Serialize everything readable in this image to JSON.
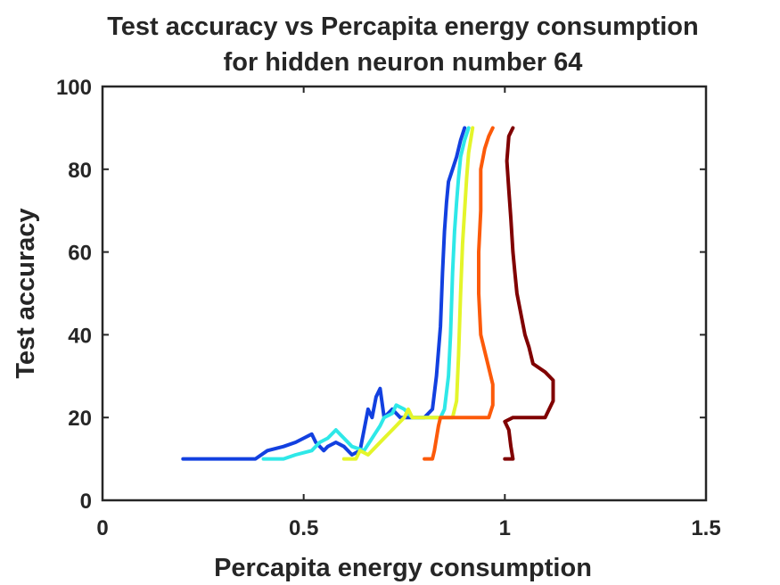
{
  "chart_data": {
    "type": "line",
    "title": [
      "Test accuracy vs Percapita energy consumption",
      "for hidden neuron number 64"
    ],
    "xlabel": "Percapita energy consumption",
    "ylabel": "Test accuracy",
    "xlim": [
      0,
      1.5
    ],
    "ylim": [
      0,
      100
    ],
    "xticks": [
      0,
      0.5,
      1,
      1.5
    ],
    "xtick_labels": [
      "0",
      "0.5",
      "1",
      "1.5"
    ],
    "yticks": [
      0,
      20,
      40,
      60,
      80,
      100
    ],
    "ytick_labels": [
      "0",
      "20",
      "40",
      "60",
      "80",
      "100"
    ],
    "grid": false,
    "box": true,
    "series": [
      {
        "color": "#1240e0",
        "points": [
          [
            0.2,
            10
          ],
          [
            0.38,
            10
          ],
          [
            0.41,
            12
          ],
          [
            0.45,
            13
          ],
          [
            0.48,
            14
          ],
          [
            0.5,
            15
          ],
          [
            0.52,
            16
          ],
          [
            0.53,
            14
          ],
          [
            0.55,
            12
          ],
          [
            0.56,
            13
          ],
          [
            0.58,
            14
          ],
          [
            0.6,
            13
          ],
          [
            0.62,
            11
          ],
          [
            0.64,
            12
          ],
          [
            0.65,
            17
          ],
          [
            0.66,
            22
          ],
          [
            0.67,
            20
          ],
          [
            0.68,
            25
          ],
          [
            0.69,
            27
          ],
          [
            0.7,
            20
          ],
          [
            0.72,
            22
          ],
          [
            0.74,
            20
          ],
          [
            0.8,
            20
          ],
          [
            0.82,
            22
          ],
          [
            0.83,
            30
          ],
          [
            0.84,
            42
          ],
          [
            0.845,
            55
          ],
          [
            0.85,
            65
          ],
          [
            0.855,
            72
          ],
          [
            0.86,
            77
          ],
          [
            0.87,
            80
          ],
          [
            0.88,
            83
          ],
          [
            0.89,
            87
          ],
          [
            0.9,
            90
          ]
        ]
      },
      {
        "color": "#2ee8e8",
        "points": [
          [
            0.4,
            10
          ],
          [
            0.45,
            10
          ],
          [
            0.48,
            11
          ],
          [
            0.52,
            12
          ],
          [
            0.54,
            14
          ],
          [
            0.56,
            15
          ],
          [
            0.58,
            17
          ],
          [
            0.6,
            15
          ],
          [
            0.62,
            13
          ],
          [
            0.65,
            12
          ],
          [
            0.67,
            15
          ],
          [
            0.69,
            18
          ],
          [
            0.7,
            20
          ],
          [
            0.72,
            21
          ],
          [
            0.73,
            23
          ],
          [
            0.75,
            22
          ],
          [
            0.77,
            20
          ],
          [
            0.84,
            20
          ],
          [
            0.85,
            22
          ],
          [
            0.86,
            30
          ],
          [
            0.865,
            40
          ],
          [
            0.87,
            55
          ],
          [
            0.875,
            65
          ],
          [
            0.88,
            72
          ],
          [
            0.885,
            78
          ],
          [
            0.89,
            83
          ],
          [
            0.9,
            87
          ],
          [
            0.91,
            90
          ]
        ]
      },
      {
        "color": "#e4f52a",
        "points": [
          [
            0.6,
            10
          ],
          [
            0.63,
            10
          ],
          [
            0.64,
            12
          ],
          [
            0.66,
            11
          ],
          [
            0.68,
            13
          ],
          [
            0.7,
            15
          ],
          [
            0.72,
            17
          ],
          [
            0.74,
            19
          ],
          [
            0.75,
            20
          ],
          [
            0.76,
            22
          ],
          [
            0.77,
            20
          ],
          [
            0.87,
            20
          ],
          [
            0.88,
            24
          ],
          [
            0.885,
            35
          ],
          [
            0.89,
            50
          ],
          [
            0.895,
            62
          ],
          [
            0.9,
            70
          ],
          [
            0.905,
            78
          ],
          [
            0.91,
            84
          ],
          [
            0.92,
            90
          ]
        ]
      },
      {
        "color": "#fc5a0a",
        "points": [
          [
            0.8,
            10
          ],
          [
            0.82,
            10
          ],
          [
            0.825,
            12
          ],
          [
            0.83,
            15
          ],
          [
            0.835,
            18
          ],
          [
            0.84,
            20
          ],
          [
            0.96,
            20
          ],
          [
            0.97,
            23
          ],
          [
            0.97,
            28
          ],
          [
            0.96,
            32
          ],
          [
            0.95,
            36
          ],
          [
            0.94,
            40
          ],
          [
            0.935,
            50
          ],
          [
            0.935,
            60
          ],
          [
            0.94,
            70
          ],
          [
            0.94,
            80
          ],
          [
            0.95,
            85
          ],
          [
            0.96,
            88
          ],
          [
            0.97,
            90
          ]
        ]
      },
      {
        "color": "#800000",
        "points": [
          [
            1.0,
            10
          ],
          [
            1.02,
            10
          ],
          [
            1.015,
            13
          ],
          [
            1.01,
            17
          ],
          [
            1.0,
            19
          ],
          [
            1.02,
            20
          ],
          [
            1.1,
            20
          ],
          [
            1.12,
            24
          ],
          [
            1.12,
            29
          ],
          [
            1.1,
            31
          ],
          [
            1.07,
            33
          ],
          [
            1.06,
            37
          ],
          [
            1.05,
            40
          ],
          [
            1.04,
            45
          ],
          [
            1.03,
            50
          ],
          [
            1.025,
            55
          ],
          [
            1.02,
            60
          ],
          [
            1.015,
            68
          ],
          [
            1.01,
            75
          ],
          [
            1.005,
            82
          ],
          [
            1.01,
            88
          ],
          [
            1.02,
            90
          ]
        ]
      }
    ]
  }
}
